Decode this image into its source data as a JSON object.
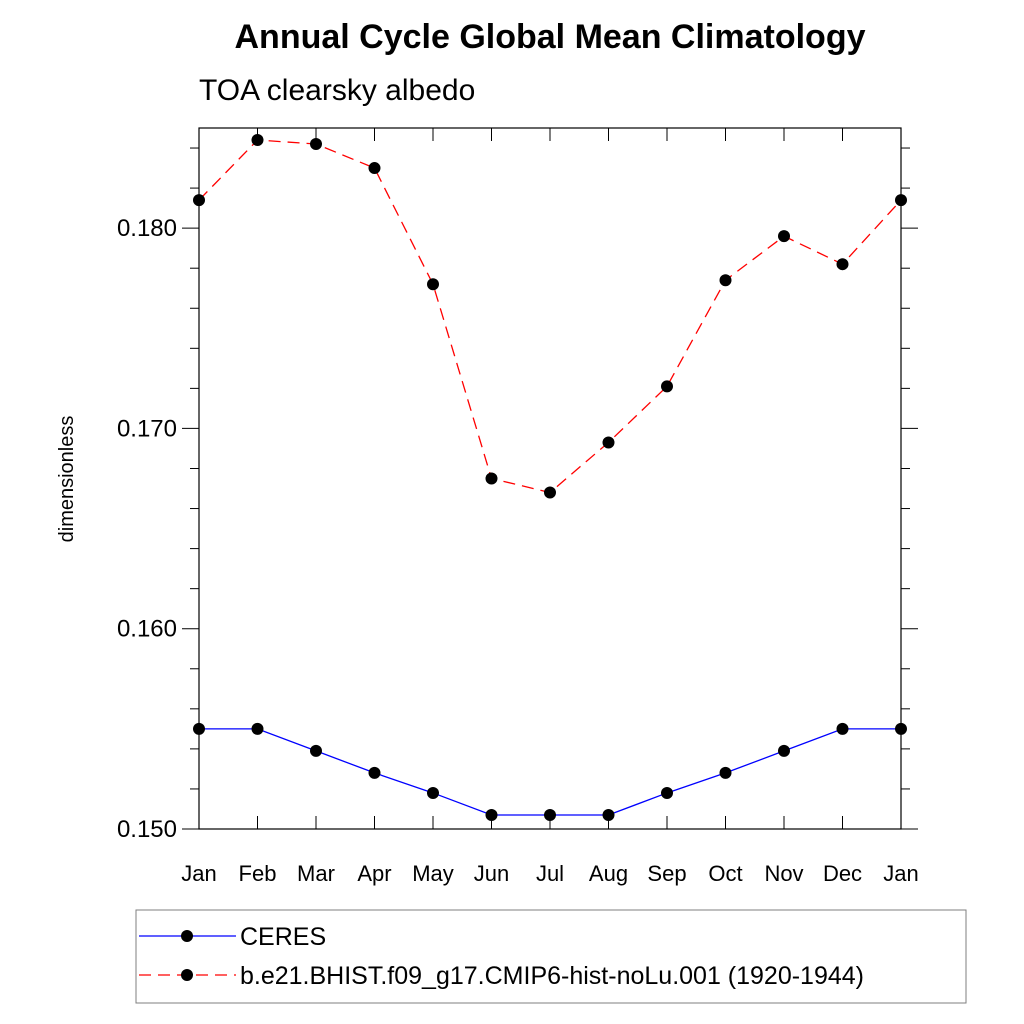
{
  "chart_data": {
    "type": "line",
    "title": "Annual Cycle Global Mean Climatology",
    "subtitle": "TOA clearsky albedo",
    "ylabel": "dimensionless",
    "xlabel": "",
    "categories": [
      "Jan",
      "Feb",
      "Mar",
      "Apr",
      "May",
      "Jun",
      "Jul",
      "Aug",
      "Sep",
      "Oct",
      "Nov",
      "Dec",
      "Jan"
    ],
    "ylim": [
      0.15,
      0.185
    ],
    "yticks": [
      0.15,
      0.16,
      0.17,
      0.18
    ],
    "ytick_labels": [
      "0.150",
      "0.160",
      "0.170",
      "0.180"
    ],
    "grid": false,
    "legend_position": "bottom",
    "series": [
      {
        "name": "CERES",
        "color": "#0000ff",
        "dash": "solid",
        "values": [
          0.155,
          0.155,
          0.1539,
          0.1528,
          0.1518,
          0.1507,
          0.1507,
          0.1507,
          0.1518,
          0.1528,
          0.1539,
          0.155,
          0.155
        ]
      },
      {
        "name": "b.e21.BHIST.f09_g17.CMIP6-hist-noLu.001 (1920-1944)",
        "color": "#ff0000",
        "dash": "dashed",
        "values": [
          0.1814,
          0.1844,
          0.1842,
          0.183,
          0.1772,
          0.1675,
          0.1668,
          0.1693,
          0.1721,
          0.1774,
          0.1796,
          0.1782,
          0.1814
        ]
      }
    ]
  }
}
